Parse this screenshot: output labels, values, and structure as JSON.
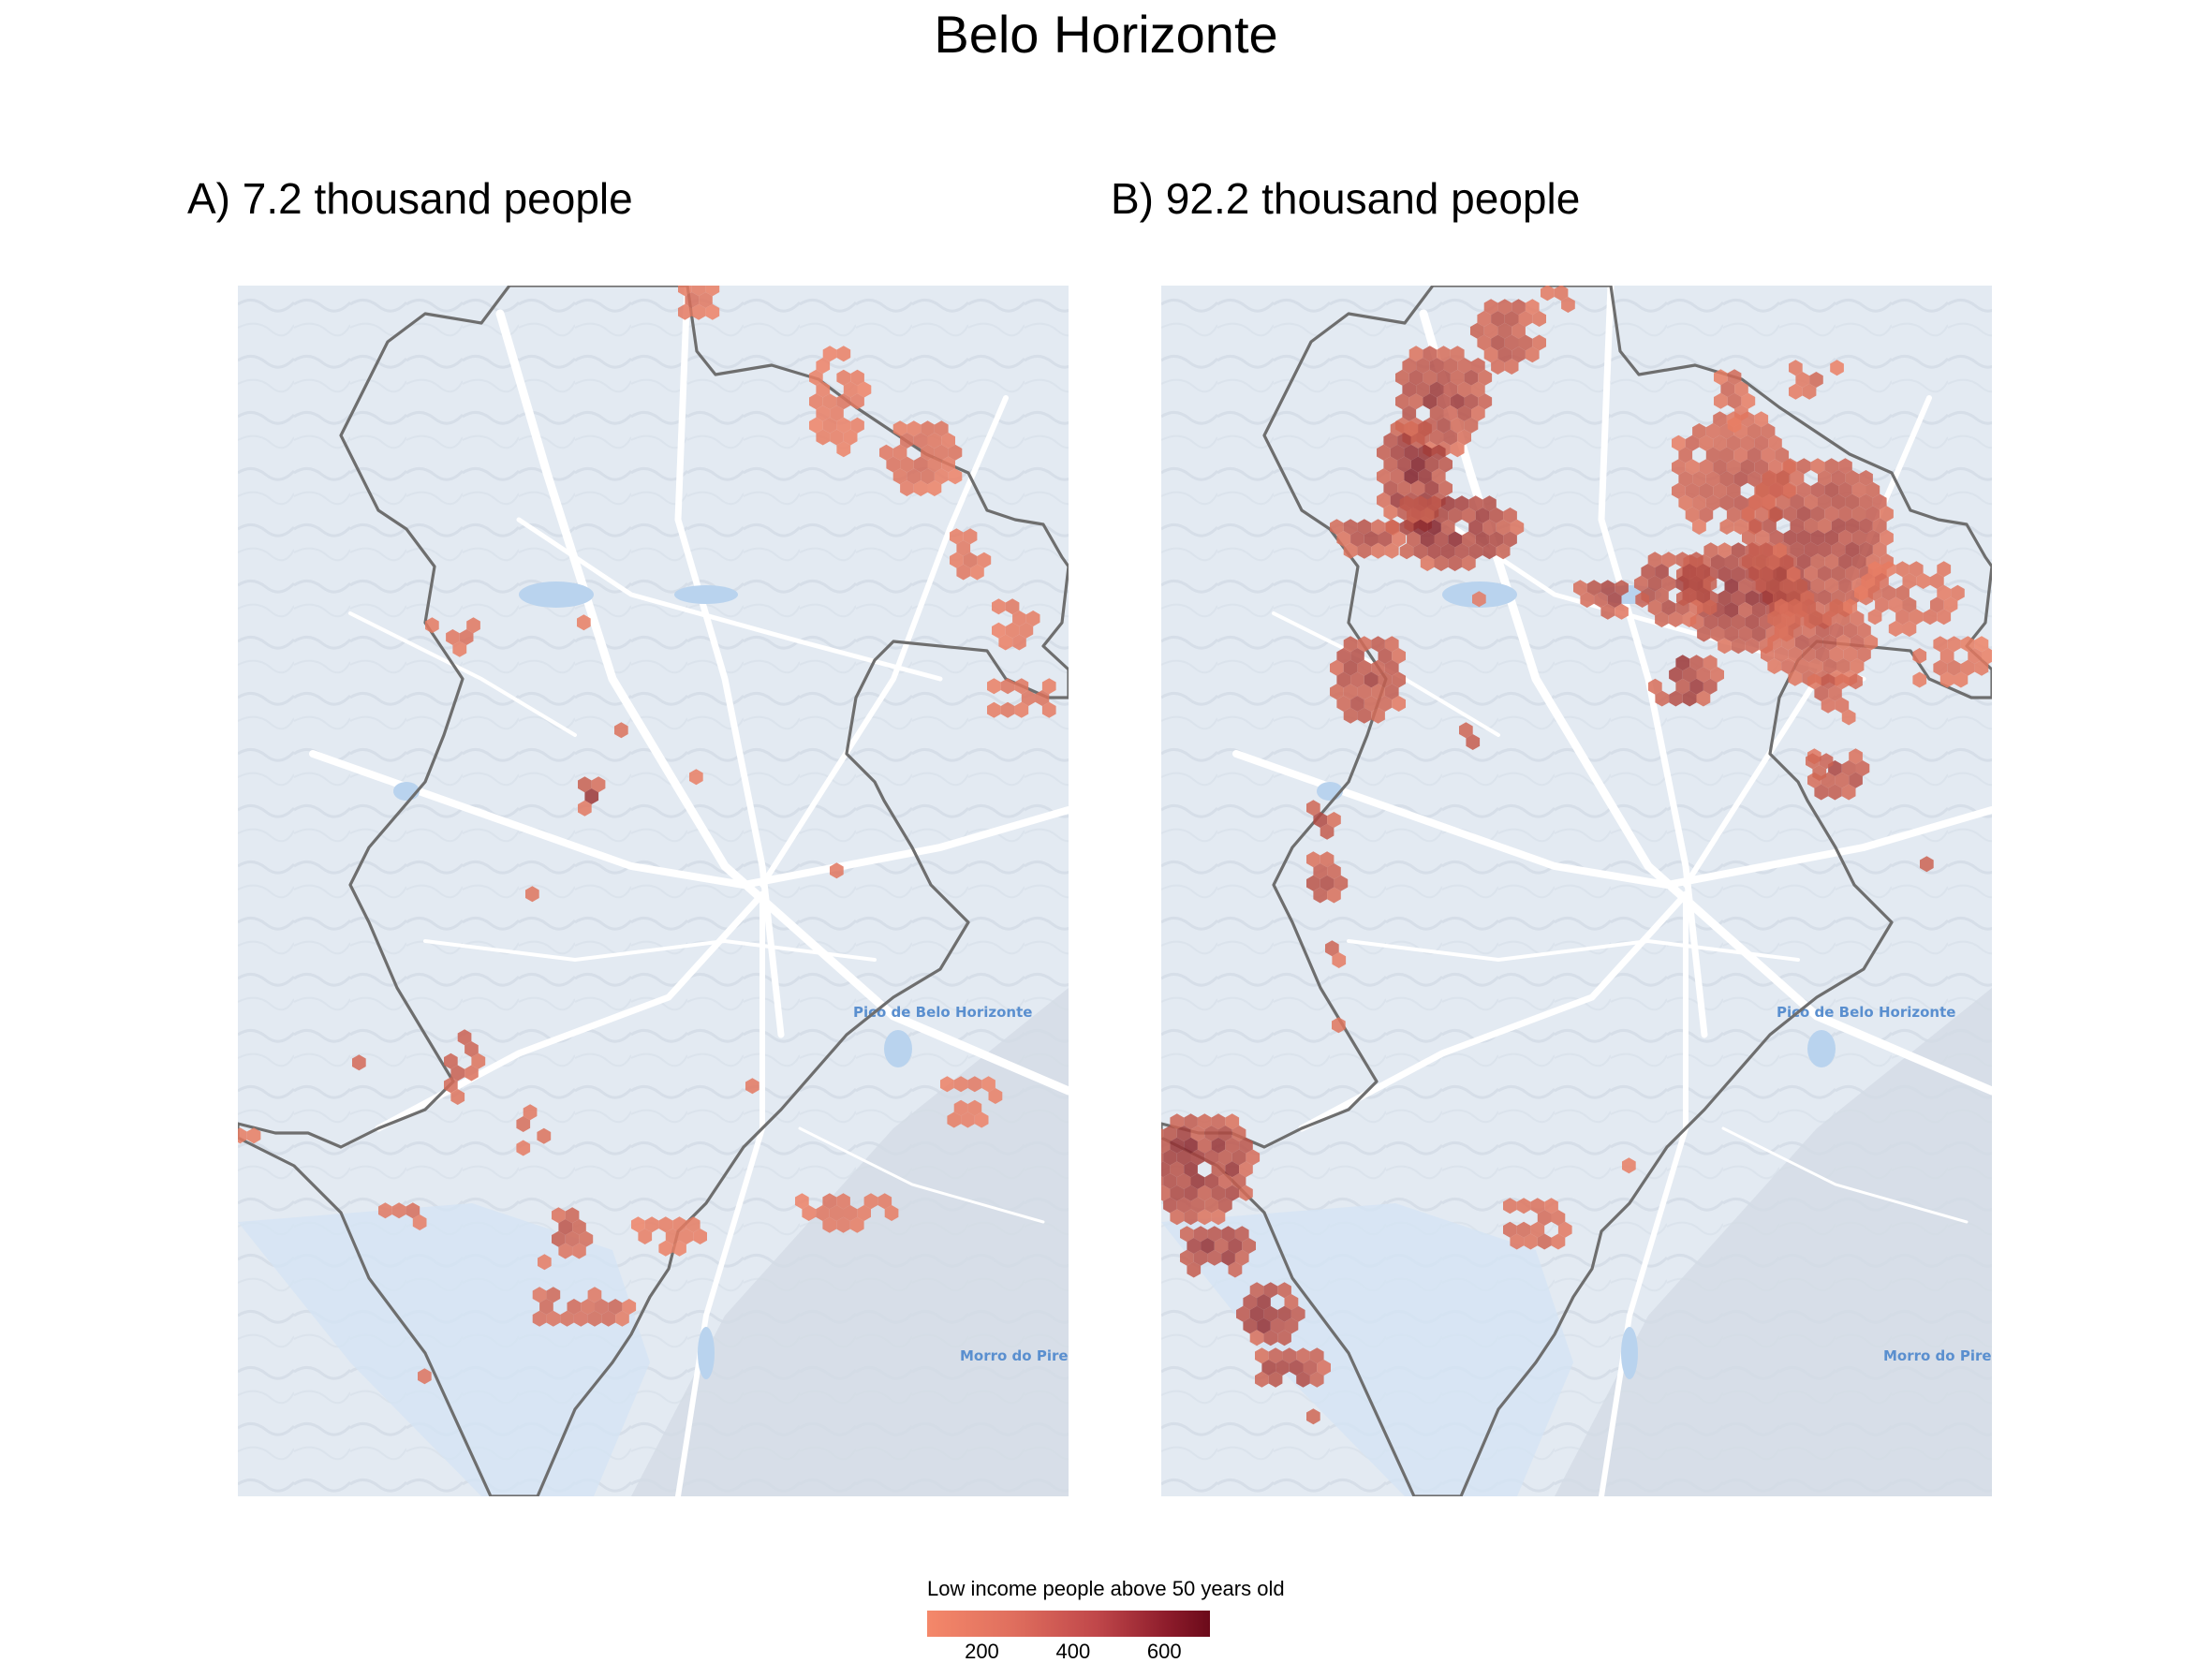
{
  "title": "Belo Horizonte",
  "panels": [
    {
      "label": "A) 7.2 thousand people"
    },
    {
      "label": "B) 92.2 thousand people"
    }
  ],
  "places": {
    "pico": "Pico de Belo Horizonte",
    "morro": "Morro do Pires"
  },
  "legend": {
    "title": "Low income people above 50 years old",
    "ticks": [
      200,
      400,
      600
    ],
    "range": [
      80,
      700
    ],
    "colors": [
      "#f4886a",
      "#6b0a1a"
    ]
  },
  "colors": {
    "boundary": "#6e6e6e",
    "basemap": "#e6edf5",
    "roads": "#ffffff",
    "water": "#b9d3ee"
  }
}
